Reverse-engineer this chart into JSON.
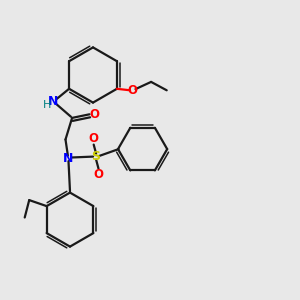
{
  "bg_color": "#e8e8e8",
  "bond_color": "#1a1a1a",
  "N_color": "#0000ff",
  "O_color": "#ff0000",
  "S_color": "#cccc00",
  "H_color": "#008080",
  "fig_size": [
    3.0,
    3.0
  ],
  "dpi": 100,
  "xlim": [
    0,
    10
  ],
  "ylim": [
    0,
    10
  ]
}
